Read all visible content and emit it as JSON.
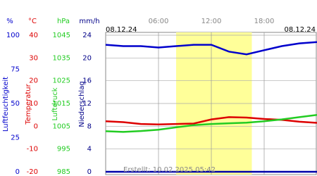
{
  "chart_data": {
    "type": "line",
    "date_start": "08.12.24",
    "date_end": "08.12.24",
    "created": "Erstellt: 10.02.2025 05:42",
    "xlim": [
      0,
      24
    ],
    "xticks": [
      {
        "value": 6,
        "label": "06:00"
      },
      {
        "value": 12,
        "label": "12:00"
      },
      {
        "value": 18,
        "label": "18:00"
      }
    ],
    "daylight": [
      8,
      16.6
    ],
    "axes": [
      {
        "unit": "%",
        "label": "Luftfeuchtigkeit",
        "color": "#0000cc",
        "lim": [
          0,
          100
        ],
        "ticks": [
          0,
          25,
          50,
          75,
          100
        ]
      },
      {
        "unit": "°C",
        "label": "Temperatur",
        "color": "#dd0000",
        "lim": [
          -20,
          40
        ],
        "ticks": [
          -20,
          -10,
          0,
          10,
          20,
          30,
          40
        ]
      },
      {
        "unit": "hPa",
        "label": "Luftdruck",
        "color": "#22cc22",
        "lim": [
          985,
          1045
        ],
        "ticks": [
          985,
          995,
          1005,
          1015,
          1025,
          1035,
          1045
        ]
      },
      {
        "unit": "mm/h",
        "label": "Niederschlag",
        "color": "#000088",
        "lim": [
          0,
          24
        ],
        "ticks": [
          0,
          4,
          8,
          12,
          16,
          20,
          24
        ]
      }
    ],
    "x": [
      0,
      2,
      4,
      6,
      8,
      10,
      12,
      14,
      16,
      18,
      20,
      22,
      24
    ],
    "series": [
      {
        "name": "Luftfeuchtigkeit",
        "axis": 0,
        "color": "#0000cc",
        "values": [
          93,
          92,
          92,
          91,
          92,
          93,
          93,
          88,
          86,
          89,
          92,
          94,
          95
        ]
      },
      {
        "name": "Temperatur",
        "axis": 1,
        "color": "#dd0000",
        "values": [
          2.2,
          1.8,
          1.0,
          0.8,
          1.0,
          1.2,
          3.0,
          4.0,
          3.8,
          3.2,
          2.8,
          2.0,
          1.5
        ]
      },
      {
        "name": "Luftdruck",
        "axis": 2,
        "color": "#22cc22",
        "values": [
          1002.8,
          1002.5,
          1002.9,
          1003.5,
          1004.5,
          1005.5,
          1006.0,
          1006.3,
          1006.6,
          1007.2,
          1008.0,
          1009.0,
          1010.0
        ]
      },
      {
        "name": "Niederschlag",
        "axis": 3,
        "color": "#0000aa",
        "values": [
          0,
          0,
          0,
          0,
          0,
          0,
          0,
          0,
          0,
          0,
          0,
          0,
          0
        ]
      }
    ]
  }
}
